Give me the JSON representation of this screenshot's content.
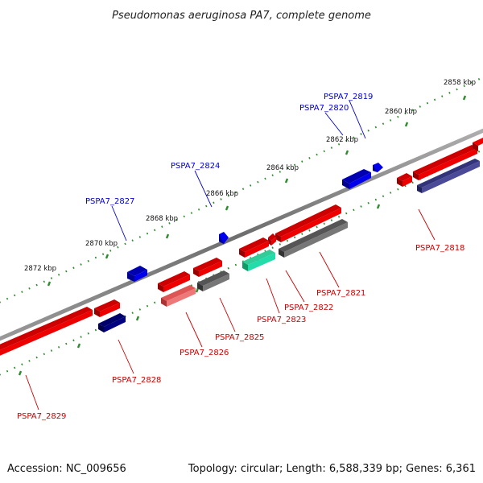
{
  "title": "Pseudomonas aeruginosa PA7, complete genome",
  "footer": {
    "accession": "Accession: NC_009656",
    "summary": "Topology: circular; Length: 6,588,339 bp; Genes: 6,361"
  },
  "colors": {
    "backbone": "#7f7f7f",
    "tick": "#2e8b2e",
    "forward_label": "#0000cc",
    "reverse_label": "#cc0000",
    "red": "#ee0000",
    "blue": "#0000ee",
    "gray": "#666666",
    "navy": "#000080",
    "slate": "#4a4a99",
    "pink": "#ee7777",
    "teal": "#22ddaa"
  },
  "ticks": [
    {
      "label": "2858 kbp",
      "pos": 2858
    },
    {
      "label": "2860 kbp",
      "pos": 2860
    },
    {
      "label": "2862 kbp",
      "pos": 2862
    },
    {
      "label": "2864 kbp",
      "pos": 2864
    },
    {
      "label": "2866 kbp",
      "pos": 2866
    },
    {
      "label": "2868 kbp",
      "pos": 2868
    },
    {
      "label": "2870 kbp",
      "pos": 2870
    },
    {
      "label": "2872 kbp",
      "pos": 2872
    }
  ],
  "genes": [
    {
      "name": "PSPA7_2819",
      "strand": "+",
      "color": "blue"
    },
    {
      "name": "PSPA7_2820",
      "strand": "+",
      "color": "blue"
    },
    {
      "name": "PSPA7_2824",
      "strand": "+",
      "color": "blue"
    },
    {
      "name": "PSPA7_2827",
      "strand": "+",
      "color": "blue"
    },
    {
      "name": "PSPA7_2818",
      "strand": "-",
      "color": "red"
    },
    {
      "name": "PSPA7_2821",
      "strand": "-",
      "color": "red"
    },
    {
      "name": "PSPA7_2822",
      "strand": "-",
      "color": "red"
    },
    {
      "name": "PSPA7_2823",
      "strand": "-",
      "color": "red"
    },
    {
      "name": "PSPA7_2825",
      "strand": "-",
      "color": "red"
    },
    {
      "name": "PSPA7_2826",
      "strand": "-",
      "color": "red"
    },
    {
      "name": "PSPA7_2828",
      "strand": "-",
      "color": "red"
    },
    {
      "name": "PSPA7_2829",
      "strand": "-",
      "color": "red"
    }
  ]
}
